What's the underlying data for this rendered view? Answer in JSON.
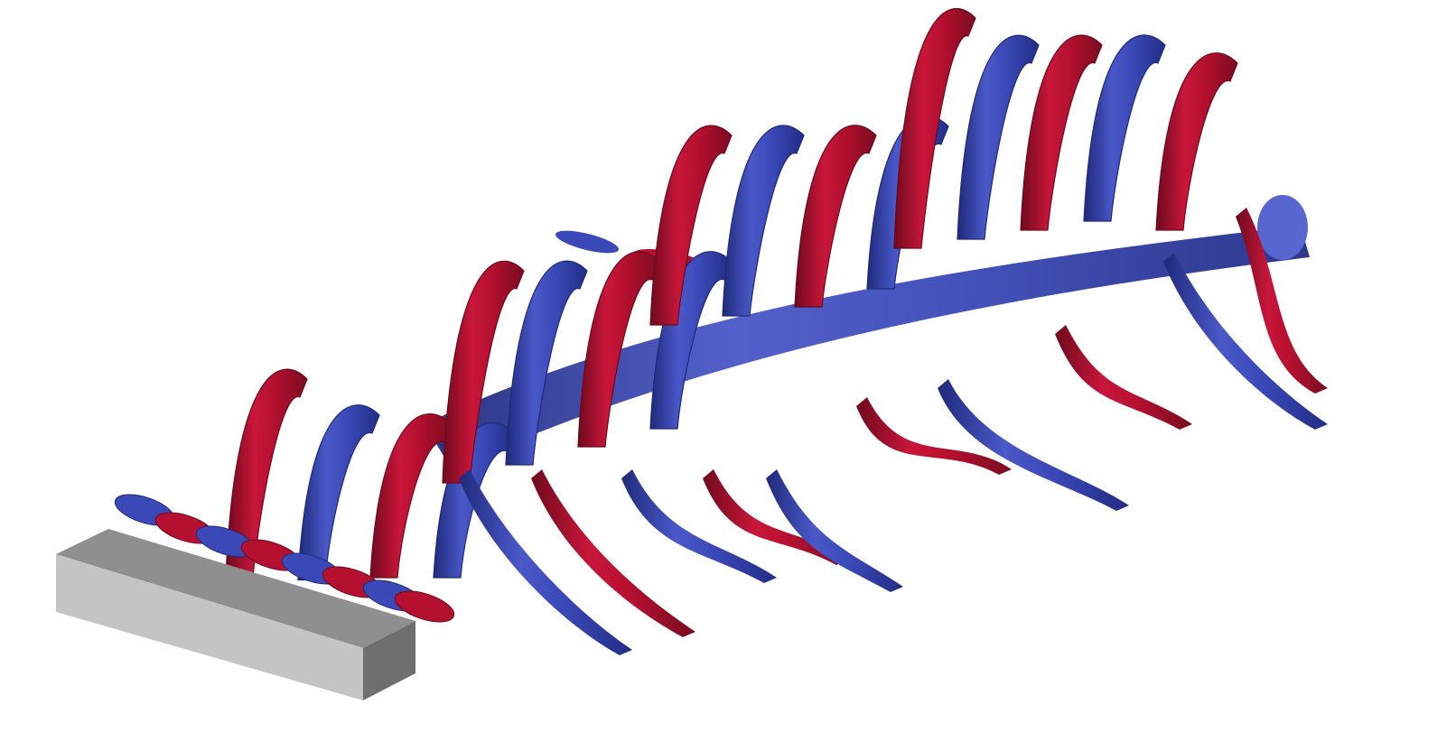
{
  "colors": {
    "background": "#ffffff",
    "positive_isosurface": "#b5102f",
    "positive_isosurface_light": "#d8224a",
    "positive_isosurface_dark": "#6e0a1d",
    "negative_isosurface": "#3b49b8",
    "negative_isosurface_light": "#5866d0",
    "negative_isosurface_dark": "#1f2a7a",
    "body_top": "#8f8f8f",
    "body_front": "#c4c4c4",
    "body_side": "#6f6f6f"
  },
  "scene": {
    "description_visible_text": ""
  }
}
